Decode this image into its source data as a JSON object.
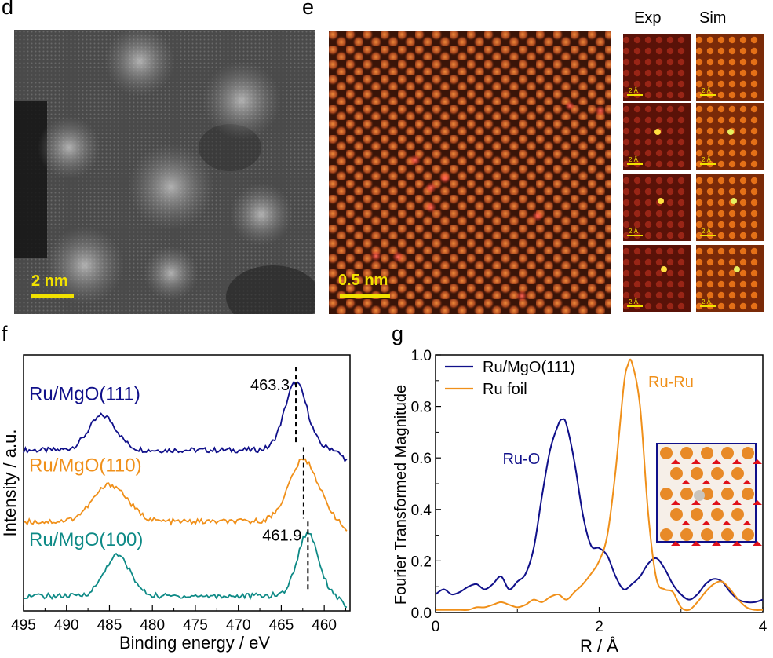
{
  "panels": {
    "d": {
      "label": "d",
      "scale_bar": "2 nm"
    },
    "e": {
      "label": "e",
      "scale_bar": "0.5 nm",
      "col_exp": "Exp",
      "col_sim": "Sim",
      "tile_scale": "2 Å"
    },
    "f": {
      "label": "f"
    },
    "g": {
      "label": "g"
    }
  },
  "colors": {
    "navy": "#10108a",
    "orange": "#f0901a",
    "teal": "#0e8a86",
    "scale_yellow": "#f2e200"
  },
  "chart_data": [
    {
      "type": "line",
      "panel": "f",
      "xlabel": "Binding energy / eV",
      "ylabel": "Intensity / a.u.",
      "xlim": [
        495,
        457
      ],
      "x_ticks": [
        495,
        490,
        485,
        480,
        475,
        470,
        465,
        460
      ],
      "series": [
        {
          "name": "Ru/MgO(111)",
          "color": "#10108a",
          "offset": 2.45,
          "peaks": [
            {
              "x": 485.8,
              "h": 0.58,
              "w": 1.6
            },
            {
              "x": 463.3,
              "h": 1.12,
              "w": 1.3
            }
          ]
        },
        {
          "name": "Ru/MgO(110)",
          "color": "#f0901a",
          "offset": 1.25,
          "peaks": [
            {
              "x": 484.9,
              "h": 0.62,
              "w": 2.0
            },
            {
              "x": 462.4,
              "h": 1.02,
              "w": 1.7
            }
          ]
        },
        {
          "name": "Ru/MgO(100)",
          "color": "#0e8a86",
          "offset": 0.0,
          "peaks": [
            {
              "x": 484.1,
              "h": 0.68,
              "w": 1.5
            },
            {
              "x": 461.9,
              "h": 1.05,
              "w": 1.2
            }
          ]
        }
      ],
      "annotations": [
        {
          "text": "463.3",
          "x": 463.3
        },
        {
          "text": "461.9",
          "x": 461.9
        }
      ],
      "markers": [
        463.3,
        462.4,
        461.9
      ]
    },
    {
      "type": "line",
      "panel": "g",
      "xlabel": "R / Å",
      "ylabel": "Fourier Transformed Magnitude",
      "xlim": [
        0,
        4
      ],
      "ylim": [
        0,
        1.0
      ],
      "x_ticks": [
        0,
        2,
        4
      ],
      "y_ticks": [
        0.0,
        0.2,
        0.4,
        0.6,
        0.8,
        1.0
      ],
      "y_tick_labels": [
        "0.0",
        "0.2",
        "0.4",
        "0.6",
        "0.8",
        "1.0"
      ],
      "legend": [
        "Ru/MgO(111)",
        "Ru foil"
      ],
      "annotations": [
        {
          "text": "Ru-O"
        },
        {
          "text": "Ru-Ru"
        }
      ],
      "series": [
        {
          "name": "Ru/MgO(111)",
          "color": "#10108a",
          "x": [
            0.0,
            0.1,
            0.2,
            0.3,
            0.4,
            0.5,
            0.6,
            0.7,
            0.8,
            0.9,
            1.0,
            1.1,
            1.2,
            1.3,
            1.4,
            1.5,
            1.55,
            1.6,
            1.7,
            1.8,
            1.9,
            2.0,
            2.1,
            2.2,
            2.3,
            2.4,
            2.5,
            2.6,
            2.7,
            2.8,
            2.9,
            3.0,
            3.1,
            3.2,
            3.3,
            3.4,
            3.5,
            3.6,
            3.7,
            3.8,
            3.9,
            4.0
          ],
          "y": [
            0.07,
            0.09,
            0.07,
            0.08,
            0.1,
            0.11,
            0.09,
            0.11,
            0.14,
            0.09,
            0.12,
            0.15,
            0.25,
            0.45,
            0.63,
            0.73,
            0.75,
            0.73,
            0.58,
            0.38,
            0.26,
            0.25,
            0.22,
            0.14,
            0.09,
            0.11,
            0.14,
            0.19,
            0.21,
            0.17,
            0.11,
            0.07,
            0.05,
            0.07,
            0.11,
            0.13,
            0.12,
            0.08,
            0.05,
            0.04,
            0.04,
            0.05
          ]
        },
        {
          "name": "Ru foil",
          "color": "#f0901a",
          "x": [
            0.0,
            0.1,
            0.2,
            0.3,
            0.4,
            0.5,
            0.6,
            0.7,
            0.8,
            0.9,
            1.0,
            1.1,
            1.2,
            1.3,
            1.4,
            1.5,
            1.6,
            1.7,
            1.8,
            1.9,
            2.0,
            2.1,
            2.2,
            2.3,
            2.35,
            2.4,
            2.5,
            2.6,
            2.7,
            2.8,
            2.9,
            3.0,
            3.1,
            3.2,
            3.3,
            3.4,
            3.5,
            3.6,
            3.7,
            3.8,
            3.9,
            4.0
          ],
          "y": [
            0.01,
            0.01,
            0.01,
            0.01,
            0.01,
            0.02,
            0.02,
            0.03,
            0.04,
            0.03,
            0.02,
            0.03,
            0.05,
            0.04,
            0.06,
            0.07,
            0.05,
            0.08,
            0.11,
            0.15,
            0.2,
            0.3,
            0.55,
            0.88,
            0.96,
            0.97,
            0.8,
            0.38,
            0.13,
            0.09,
            0.08,
            0.02,
            0.01,
            0.04,
            0.08,
            0.11,
            0.12,
            0.09,
            0.05,
            0.02,
            0.01,
            0.01
          ]
        }
      ]
    }
  ]
}
